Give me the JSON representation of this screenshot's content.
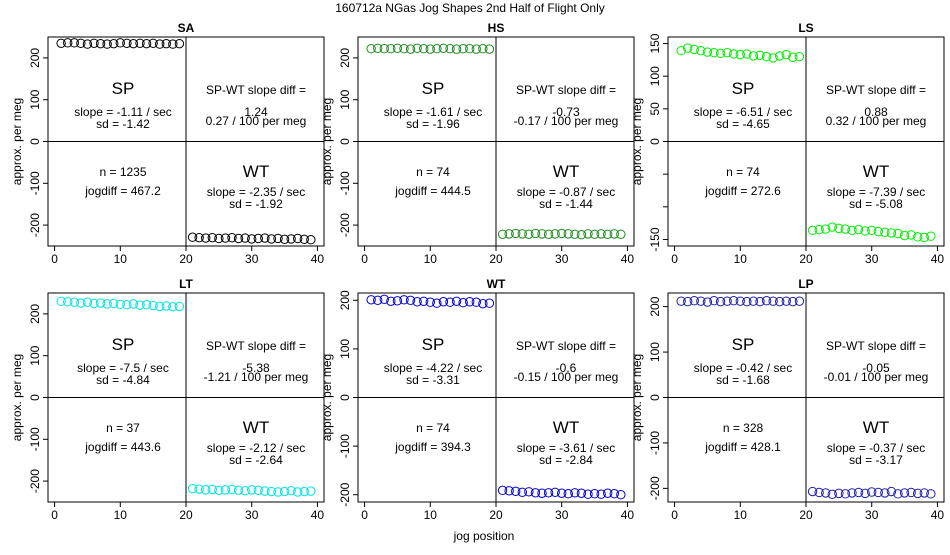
{
  "title": "160712a   NGas Jog Shapes 2nd Half of Flight Only",
  "xlabel": "jog position",
  "chart_data": [
    {
      "type": "scatter",
      "title": "SA",
      "ylabel": "approx. per meg",
      "color": "#000000",
      "xlim": [
        -1,
        41
      ],
      "ylim": [
        -250,
        250
      ],
      "xticks": [
        0,
        10,
        20,
        30,
        40
      ],
      "yticks": [
        -200,
        -100,
        0,
        100,
        200
      ],
      "x": [
        1,
        2,
        3,
        4,
        5,
        6,
        7,
        8,
        9,
        10,
        11,
        12,
        13,
        14,
        15,
        16,
        17,
        18,
        19,
        21,
        22,
        23,
        24,
        25,
        26,
        27,
        28,
        29,
        30,
        31,
        32,
        33,
        34,
        35,
        36,
        37,
        38,
        39
      ],
      "y": [
        235,
        236,
        236,
        235,
        233,
        235,
        234,
        233,
        234,
        236,
        235,
        234,
        235,
        234,
        235,
        233,
        234,
        233,
        234,
        -229,
        -230,
        -231,
        -230,
        -232,
        -231,
        -230,
        -232,
        -231,
        -233,
        -232,
        -231,
        -233,
        -232,
        -234,
        -233,
        -232,
        -234,
        -235
      ],
      "sp_label": "SP",
      "wt_label": "WT",
      "sp_slope": "slope = -1.11 / sec",
      "sp_sd": "sd = -1.42",
      "diff_label": "SP-WT slope diff =",
      "diff_value": "1.24",
      "diff_per": "0.27 / 100 per meg",
      "n": "n = 1235",
      "jogdiff": "jogdiff = 467.2",
      "wt_slope": "slope = -2.35 / sec",
      "wt_sd": "sd = -1.92"
    },
    {
      "type": "scatter",
      "title": "HS",
      "ylabel": "approx. per meg",
      "color": "#228B22",
      "xlim": [
        -1,
        41
      ],
      "ylim": [
        -250,
        250
      ],
      "xticks": [
        0,
        10,
        20,
        30,
        40
      ],
      "yticks": [
        -200,
        -100,
        0,
        100,
        200
      ],
      "x": [
        1,
        2,
        3,
        4,
        5,
        6,
        7,
        8,
        9,
        10,
        11,
        12,
        13,
        14,
        15,
        16,
        17,
        18,
        19,
        21,
        22,
        23,
        24,
        25,
        26,
        27,
        28,
        29,
        30,
        31,
        32,
        33,
        34,
        35,
        36,
        37,
        38,
        39
      ],
      "y": [
        222,
        223,
        222,
        222,
        223,
        222,
        221,
        223,
        222,
        221,
        222,
        223,
        222,
        221,
        222,
        222,
        221,
        222,
        221,
        -222,
        -221,
        -220,
        -221,
        -222,
        -220,
        -221,
        -222,
        -221,
        -220,
        -221,
        -222,
        -223,
        -221,
        -222,
        -221,
        -222,
        -221,
        -222
      ],
      "sp_label": "SP",
      "wt_label": "WT",
      "sp_slope": "slope = -1.61 / sec",
      "sp_sd": "sd = -1.96",
      "diff_label": "SP-WT slope diff =",
      "diff_value": "-0.73",
      "diff_per": "-0.17 / 100 per meg",
      "n": "n = 74",
      "jogdiff": "jogdiff = 444.5",
      "wt_slope": "slope = -0.87 / sec",
      "wt_sd": "sd = -1.44"
    },
    {
      "type": "scatter",
      "title": "LS",
      "ylabel": "approx. per meg",
      "color": "#00EE00",
      "xlim": [
        -1,
        41
      ],
      "ylim": [
        -160,
        160
      ],
      "xticks": [
        0,
        10,
        20,
        30,
        40
      ],
      "yticks": [
        -150,
        -100,
        -50,
        0,
        50,
        100,
        150
      ],
      "ytick_labels": [
        "-150",
        "",
        "",
        "0",
        "50",
        "100",
        "150"
      ],
      "x": [
        1,
        2,
        3,
        4,
        5,
        6,
        7,
        8,
        9,
        10,
        11,
        12,
        13,
        14,
        15,
        16,
        17,
        18,
        19,
        21,
        22,
        23,
        24,
        25,
        26,
        27,
        28,
        29,
        30,
        31,
        32,
        33,
        34,
        35,
        36,
        37,
        38,
        39
      ],
      "y": [
        139,
        143,
        141,
        139,
        137,
        136,
        135,
        136,
        134,
        133,
        134,
        131,
        132,
        130,
        128,
        131,
        133,
        129,
        130,
        -136,
        -135,
        -134,
        -131,
        -133,
        -134,
        -136,
        -135,
        -137,
        -136,
        -138,
        -139,
        -140,
        -141,
        -144,
        -143,
        -146,
        -147,
        -145
      ],
      "sp_label": "SP",
      "wt_label": "WT",
      "sp_slope": "slope = -6.51 / sec",
      "sp_sd": "sd = -4.65",
      "diff_label": "SP-WT slope diff =",
      "diff_value": "0.88",
      "diff_per": "0.32 / 100 per meg",
      "n": "n = 74",
      "jogdiff": "jogdiff = 272.6",
      "wt_slope": "slope = -7.39 / sec",
      "wt_sd": "sd = -5.08"
    },
    {
      "type": "scatter",
      "title": "LT",
      "ylabel": "approx. per meg",
      "color": "#00E5E5",
      "xlim": [
        -1,
        41
      ],
      "ylim": [
        -250,
        250
      ],
      "xticks": [
        0,
        10,
        20,
        30,
        40
      ],
      "yticks": [
        -200,
        -100,
        0,
        100,
        200
      ],
      "x": [
        1,
        2,
        3,
        4,
        5,
        6,
        7,
        8,
        9,
        10,
        11,
        12,
        13,
        14,
        15,
        16,
        17,
        18,
        19,
        21,
        22,
        23,
        24,
        25,
        26,
        27,
        28,
        29,
        30,
        31,
        32,
        33,
        34,
        35,
        36,
        37,
        38,
        39
      ],
      "y": [
        230,
        229,
        228,
        226,
        228,
        225,
        226,
        224,
        225,
        223,
        222,
        224,
        221,
        222,
        220,
        218,
        219,
        217,
        218,
        -218,
        -219,
        -221,
        -220,
        -222,
        -221,
        -220,
        -222,
        -223,
        -221,
        -222,
        -224,
        -225,
        -226,
        -225,
        -223,
        -226,
        -225,
        -224
      ],
      "sp_label": "SP",
      "wt_label": "WT",
      "sp_slope": "slope = -7.5 / sec",
      "sp_sd": "sd = -4.84",
      "diff_label": "SP-WT slope diff =",
      "diff_value": "-5.38",
      "diff_per": "-1.21 / 100 per meg",
      "n": "n = 37",
      "jogdiff": "jogdiff = 443.6",
      "wt_slope": "slope = -2.12 / sec",
      "wt_sd": "sd = -2.64"
    },
    {
      "type": "scatter",
      "title": "WT",
      "ylabel": "approx. per meg",
      "color": "#0000CD",
      "xlim": [
        -1,
        41
      ],
      "ylim": [
        -215,
        215
      ],
      "xticks": [
        0,
        10,
        20,
        30,
        40
      ],
      "yticks": [
        -200,
        -100,
        0,
        100,
        200
      ],
      "x": [
        1,
        2,
        3,
        4,
        5,
        6,
        7,
        8,
        9,
        10,
        11,
        12,
        13,
        14,
        15,
        16,
        17,
        18,
        19,
        21,
        22,
        23,
        24,
        25,
        26,
        27,
        28,
        29,
        30,
        31,
        32,
        33,
        34,
        35,
        36,
        37,
        38,
        39
      ],
      "y": [
        201,
        200,
        202,
        198,
        199,
        201,
        200,
        197,
        198,
        196,
        194,
        197,
        196,
        198,
        195,
        197,
        196,
        193,
        194,
        -191,
        -192,
        -193,
        -195,
        -194,
        -196,
        -197,
        -196,
        -195,
        -197,
        -198,
        -196,
        -197,
        -199,
        -198,
        -199,
        -197,
        -198,
        -200
      ],
      "sp_label": "SP",
      "wt_label": "WT",
      "sp_slope": "slope = -4.22 / sec",
      "sp_sd": "sd = -3.31",
      "diff_label": "SP-WT slope diff =",
      "diff_value": "-0.6",
      "diff_per": "-0.15 / 100 per meg",
      "n": "n = 74",
      "jogdiff": "jogdiff = 394.3",
      "wt_slope": "slope = -3.61 / sec",
      "wt_sd": "sd = -2.84"
    },
    {
      "type": "scatter",
      "title": "LP",
      "ylabel": "approx. per meg",
      "color": "#2020B0",
      "xlim": [
        -1,
        41
      ],
      "ylim": [
        -230,
        230
      ],
      "xticks": [
        0,
        10,
        20,
        30,
        40
      ],
      "yticks": [
        -200,
        -100,
        0,
        100,
        200
      ],
      "x": [
        1,
        2,
        3,
        4,
        5,
        6,
        7,
        8,
        9,
        10,
        11,
        12,
        13,
        14,
        15,
        16,
        17,
        18,
        19,
        21,
        22,
        23,
        24,
        25,
        26,
        27,
        28,
        29,
        30,
        31,
        32,
        33,
        34,
        35,
        36,
        37,
        38,
        39
      ],
      "y": [
        212,
        211,
        213,
        212,
        210,
        213,
        211,
        212,
        213,
        212,
        211,
        212,
        211,
        213,
        212,
        211,
        212,
        211,
        212,
        -207,
        -209,
        -210,
        -213,
        -211,
        -212,
        -210,
        -209,
        -211,
        -208,
        -209,
        -210,
        -207,
        -212,
        -210,
        -209,
        -211,
        -210,
        -212
      ],
      "sp_label": "SP",
      "wt_label": "WT",
      "sp_slope": "slope = -0.42 / sec",
      "sp_sd": "sd = -1.68",
      "diff_label": "SP-WT slope diff =",
      "diff_value": "-0.05",
      "diff_per": "-0.01 / 100 per meg",
      "n": "n = 328",
      "jogdiff": "jogdiff = 428.1",
      "wt_slope": "slope = -0.37 / sec",
      "wt_sd": "sd = -3.17"
    }
  ]
}
